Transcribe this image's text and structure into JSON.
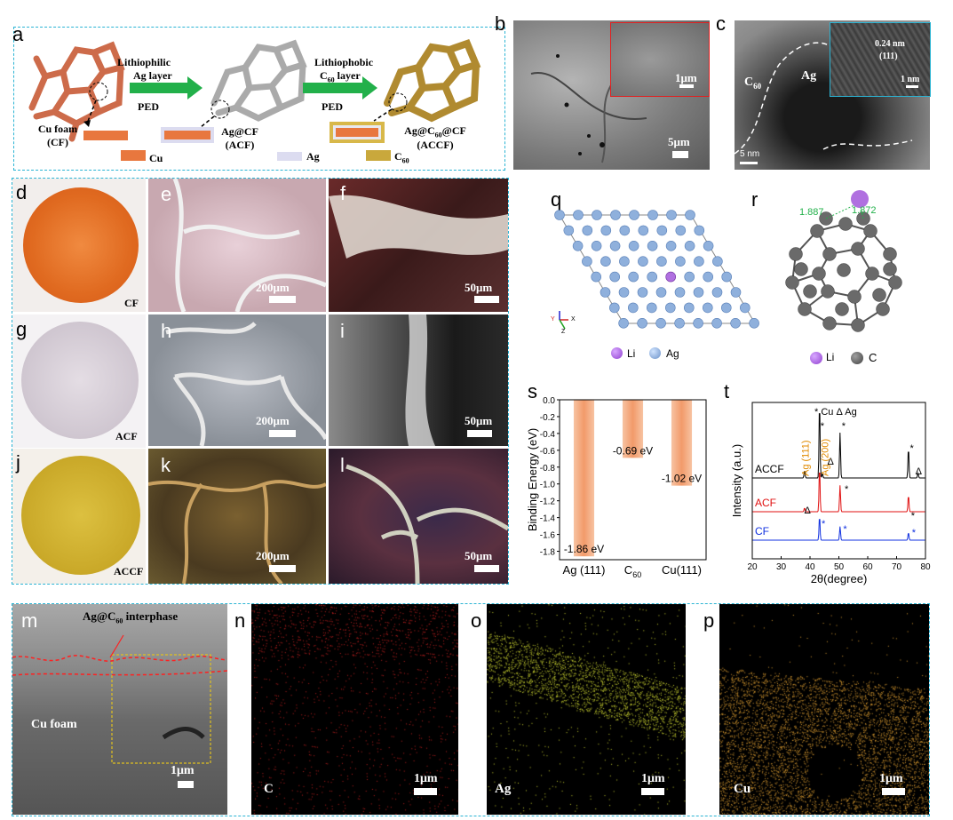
{
  "panels": {
    "a": {
      "label": "a",
      "arrow1_top": "Lithiophilic",
      "arrow1_mid": "Ag layer",
      "arrow1_bottom": "PED",
      "arrow2_top": "Lithiophobic",
      "arrow2_mid": "C",
      "arrow2_mid_sub": "60",
      "arrow2_mid_tail": " layer",
      "arrow2_bottom": "PED",
      "cf_name": "Cu foam",
      "cf_abbr": "(CF)",
      "acf_name": "Ag@CF",
      "acf_abbr": "(ACF)",
      "accf_name_a": "Ag@C",
      "accf_name_sub": "60",
      "accf_name_b": "@CF",
      "accf_abbr": "(ACCF)",
      "legend_cu": "Cu",
      "legend_ag": "Ag",
      "legend_c60": "C",
      "legend_c60_sub": "60",
      "colors": {
        "cu": "#e07a52",
        "ag": "#c9c9cf",
        "c60": "#c9a83c",
        "arrow": "#22b04a"
      }
    },
    "b": {
      "label": "b",
      "inset_scale": "1μm",
      "scale": "5μm"
    },
    "c": {
      "label": "c",
      "c60": "C",
      "c60_sub": "60",
      "ag": "Ag",
      "dspacing": "0.24 nm",
      "plane": "(111)",
      "inset_scale": "1 nm",
      "scale": "5 nm"
    },
    "d": {
      "label": "d",
      "caption": "CF"
    },
    "e": {
      "label": "e",
      "scale": "200μm"
    },
    "f": {
      "label": "f",
      "scale": "50μm"
    },
    "g": {
      "label": "g",
      "caption": "ACF"
    },
    "h": {
      "label": "h",
      "scale": "200μm"
    },
    "i": {
      "label": "i",
      "scale": "50μm"
    },
    "j": {
      "label": "j",
      "caption": "ACCF"
    },
    "k": {
      "label": "k",
      "scale": "200μm"
    },
    "l": {
      "label": "l",
      "scale": "50μm"
    },
    "m": {
      "label": "m",
      "interphase_a": "Ag@C",
      "interphase_sub": "60",
      "interphase_b": " interphase",
      "cu_foam": "Cu foam",
      "scale": "1μm"
    },
    "n": {
      "label": "n",
      "element": "C",
      "scale": "1μm"
    },
    "o": {
      "label": "o",
      "element": "Ag",
      "scale": "1μm"
    },
    "p": {
      "label": "p",
      "element": "Cu",
      "scale": "1μm"
    },
    "q": {
      "label": "q",
      "legend_li": "Li",
      "legend_ag": "Ag",
      "axis_y": "Y",
      "axis_x": "X",
      "axis_z": "Z"
    },
    "r": {
      "label": "r",
      "bond1": "1.887",
      "bond2": "1.872",
      "legend_li": "Li",
      "legend_c": "C"
    },
    "s": {
      "label": "s"
    },
    "t": {
      "label": "t",
      "legend_cu": "* Cu",
      "legend_ag": "Δ Ag"
    }
  },
  "chart_data": [
    {
      "type": "bar",
      "panel": "s",
      "categories": [
        "Ag (111)",
        "C60",
        "Cu(111)"
      ],
      "values": [
        -1.86,
        -0.69,
        -1.02
      ],
      "value_labels": [
        "-1.86 eV",
        "-0.69 eV",
        "-1.02 eV"
      ],
      "ylabel": "Binding Energy (eV)",
      "ylim": [
        0,
        -1.9
      ],
      "yticks": [
        "0.0",
        "-0.2",
        "-0.4",
        "-0.6",
        "-0.8",
        "-1.0",
        "-1.2",
        "-1.4",
        "-1.6",
        "-1.8"
      ],
      "bar_color": "#f29a6a"
    },
    {
      "type": "line",
      "panel": "t",
      "xlabel": "2θ(degree)",
      "ylabel": "Intensity (a.u.)",
      "xlim": [
        20,
        80
      ],
      "xticks": [
        "20",
        "30",
        "40",
        "50",
        "60",
        "70",
        "80"
      ],
      "series": [
        {
          "name": "ACCF",
          "color": "#000000"
        },
        {
          "name": "ACF",
          "color": "#e01010"
        },
        {
          "name": "CF",
          "color": "#1030e0"
        }
      ],
      "peak_labels": [
        "Ag (111)",
        "Ag (200)"
      ],
      "peak_label_color": "#e08a00"
    }
  ]
}
